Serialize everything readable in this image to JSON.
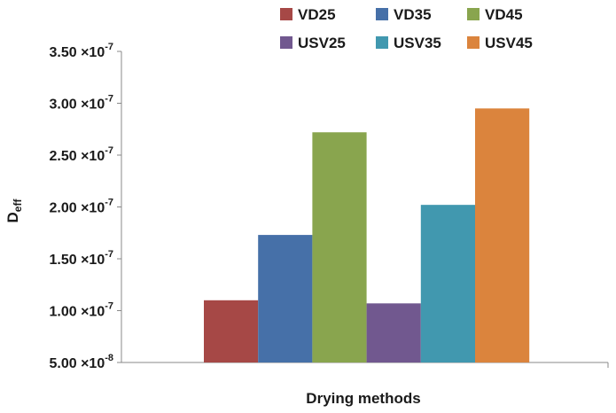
{
  "chart_data": {
    "type": "bar",
    "title": "",
    "xlabel": "Drying methods",
    "ylabel": {
      "base": "D",
      "sub": "eff"
    },
    "categories": [
      ""
    ],
    "series": [
      {
        "name": "VD25",
        "color": "#A64846",
        "values": [
          1.1e-07
        ]
      },
      {
        "name": "VD35",
        "color": "#4670A8",
        "values": [
          1.73e-07
        ]
      },
      {
        "name": "VD45",
        "color": "#89A54E",
        "values": [
          2.72e-07
        ]
      },
      {
        "name": "USV25",
        "color": "#71588F",
        "values": [
          1.07e-07
        ]
      },
      {
        "name": "USV35",
        "color": "#4198AF",
        "values": [
          2.02e-07
        ]
      },
      {
        "name": "USV45",
        "color": "#DB843D",
        "values": [
          2.95e-07
        ]
      }
    ],
    "ylim": [
      5e-08,
      3.5e-07
    ],
    "yticks": [
      {
        "value": 5e-08,
        "mantissa": "5.00",
        "exp": "-8"
      },
      {
        "value": 1e-07,
        "mantissa": "1.00",
        "exp": "-7"
      },
      {
        "value": 1.5e-07,
        "mantissa": "1.50",
        "exp": "-7"
      },
      {
        "value": 2e-07,
        "mantissa": "2.00",
        "exp": "-7"
      },
      {
        "value": 2.5e-07,
        "mantissa": "2.50",
        "exp": "-7"
      },
      {
        "value": 3e-07,
        "mantissa": "3.00",
        "exp": "-7"
      },
      {
        "value": 3.5e-07,
        "mantissa": "3.50",
        "exp": "-7"
      }
    ],
    "tick_multiplier": "×10",
    "grid": false,
    "legend": {
      "position": "top",
      "columns": 3
    }
  }
}
